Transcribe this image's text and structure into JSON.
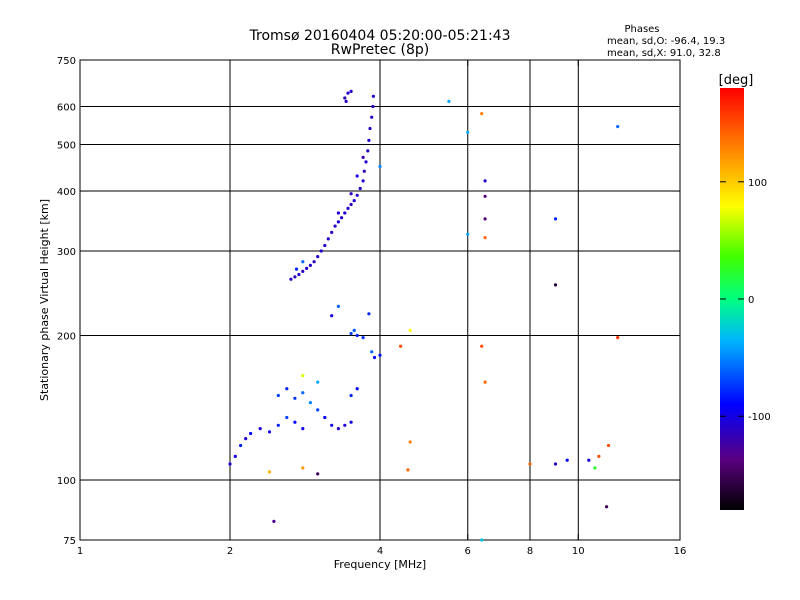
{
  "chart_data": {
    "type": "scatter",
    "title": "Tromsø 20160404 05:20:00-05:21:43",
    "subtitle": "RwPretec (8p)",
    "xlabel": "Frequency [MHz]",
    "ylabel": "Stationary phase Virtual Height [km]",
    "x_scale": "log",
    "y_scale": "log",
    "xlim": [
      1,
      16
    ],
    "ylim": [
      75,
      750
    ],
    "x_ticks": [
      1,
      2,
      4,
      6,
      8,
      10,
      16
    ],
    "x_tick_labels": [
      "1",
      "2",
      "4",
      "6",
      "8",
      "10",
      "16"
    ],
    "y_ticks": [
      75,
      100,
      200,
      300,
      400,
      500,
      600,
      750
    ],
    "y_tick_labels": [
      "75",
      "100",
      "200",
      "300",
      "400",
      "500",
      "600",
      "750"
    ],
    "grid": true,
    "stats": {
      "heading": "Phases",
      "line_o": "mean, sd,O: -96.4, 19.3",
      "line_x": "mean, sd,X:  91.0, 32.8"
    },
    "colorbar": {
      "label": "[deg]",
      "range": [
        -180,
        180
      ],
      "ticks": [
        100,
        0,
        -100
      ],
      "tick_labels": [
        "100",
        "0",
        "-100"
      ]
    },
    "series": [
      {
        "points": [
          [
            2.65,
            262,
            -110
          ],
          [
            2.7,
            265,
            -115
          ],
          [
            2.75,
            268,
            -105
          ],
          [
            2.8,
            272,
            -112
          ],
          [
            2.85,
            276,
            -108
          ],
          [
            2.9,
            280,
            -110
          ],
          [
            2.95,
            285,
            -115
          ],
          [
            3.0,
            292,
            -105
          ],
          [
            3.05,
            300,
            -110
          ],
          [
            3.1,
            308,
            -112
          ],
          [
            3.15,
            318,
            -108
          ],
          [
            3.2,
            328,
            -115
          ],
          [
            3.25,
            338,
            -110
          ],
          [
            3.3,
            345,
            -105
          ],
          [
            3.35,
            352,
            -112
          ],
          [
            3.4,
            360,
            -108
          ],
          [
            3.45,
            368,
            -110
          ],
          [
            3.5,
            375,
            -115
          ],
          [
            3.55,
            382,
            -105
          ],
          [
            3.6,
            392,
            -112
          ],
          [
            3.65,
            405,
            -110
          ],
          [
            3.7,
            420,
            -108
          ],
          [
            3.72,
            440,
            -115
          ],
          [
            3.75,
            460,
            -110
          ],
          [
            3.78,
            485,
            -112
          ],
          [
            3.8,
            510,
            -105
          ],
          [
            3.82,
            540,
            -110
          ],
          [
            3.85,
            570,
            -108
          ],
          [
            3.87,
            600,
            -112
          ],
          [
            3.88,
            630,
            -110
          ],
          [
            3.6,
            430,
            -100
          ],
          [
            3.7,
            470,
            -120
          ],
          [
            3.5,
            395,
            -115
          ],
          [
            3.3,
            360,
            -105
          ],
          [
            2.72,
            275,
            -80
          ],
          [
            2.8,
            285,
            -60
          ],
          [
            3.4,
            625,
            -115
          ],
          [
            3.45,
            640,
            -110
          ],
          [
            3.5,
            645,
            -108
          ],
          [
            3.42,
            615,
            -112
          ],
          [
            2.0,
            108,
            -110
          ],
          [
            2.05,
            112,
            -100
          ],
          [
            2.1,
            118,
            -80
          ],
          [
            2.15,
            122,
            -110
          ],
          [
            2.2,
            125,
            -90
          ],
          [
            2.3,
            128,
            -105
          ],
          [
            2.4,
            126,
            -100
          ],
          [
            2.5,
            130,
            -80
          ],
          [
            2.6,
            135,
            -70
          ],
          [
            2.7,
            132,
            -90
          ],
          [
            2.8,
            128,
            -100
          ],
          [
            2.5,
            150,
            -70
          ],
          [
            2.6,
            155,
            -80
          ],
          [
            2.7,
            148,
            -75
          ],
          [
            2.8,
            152,
            -60
          ],
          [
            2.9,
            145,
            -50
          ],
          [
            3.0,
            140,
            -70
          ],
          [
            3.1,
            135,
            -90
          ],
          [
            3.2,
            130,
            -100
          ],
          [
            3.3,
            128,
            -110
          ],
          [
            3.4,
            130,
            -105
          ],
          [
            3.5,
            132,
            -100
          ],
          [
            3.5,
            150,
            -80
          ],
          [
            3.6,
            155,
            -90
          ],
          [
            3.6,
            200,
            -80
          ],
          [
            3.5,
            202,
            -70
          ],
          [
            3.7,
            198,
            -75
          ],
          [
            3.55,
            205,
            -65
          ],
          [
            3.85,
            185,
            -60
          ],
          [
            3.9,
            180,
            -90
          ],
          [
            4.0,
            182,
            -85
          ],
          [
            3.3,
            230,
            -60
          ],
          [
            3.8,
            222,
            -80
          ],
          [
            3.2,
            220,
            -100
          ],
          [
            3.0,
            160,
            -40
          ],
          [
            2.8,
            165,
            70
          ],
          [
            2.4,
            104,
            110
          ],
          [
            2.8,
            106,
            120
          ],
          [
            3.0,
            103,
            -150
          ],
          [
            2.45,
            82,
            -130
          ],
          [
            4.6,
            205,
            80
          ],
          [
            4.4,
            190,
            150
          ],
          [
            4.6,
            120,
            130
          ],
          [
            4.55,
            105,
            140
          ],
          [
            5.5,
            615,
            -40
          ],
          [
            4.0,
            450,
            -50
          ],
          [
            6.0,
            530,
            -40
          ],
          [
            6.0,
            325,
            -40
          ],
          [
            6.4,
            580,
            130
          ],
          [
            6.5,
            320,
            140
          ],
          [
            6.4,
            190,
            150
          ],
          [
            6.5,
            160,
            140
          ],
          [
            6.5,
            420,
            -110
          ],
          [
            6.5,
            390,
            -140
          ],
          [
            6.5,
            350,
            -140
          ],
          [
            6.4,
            75,
            -30
          ],
          [
            9.0,
            350,
            -80
          ],
          [
            9.0,
            255,
            -160
          ],
          [
            9.0,
            108,
            -110
          ],
          [
            9.5,
            110,
            -90
          ],
          [
            8.0,
            108,
            140
          ],
          [
            10.5,
            110,
            -100
          ],
          [
            10.8,
            106,
            20
          ],
          [
            11.0,
            112,
            150
          ],
          [
            11.5,
            118,
            150
          ],
          [
            12.0,
            198,
            160
          ],
          [
            12.0,
            545,
            -60
          ],
          [
            11.4,
            88,
            -150
          ]
        ]
      }
    ]
  }
}
